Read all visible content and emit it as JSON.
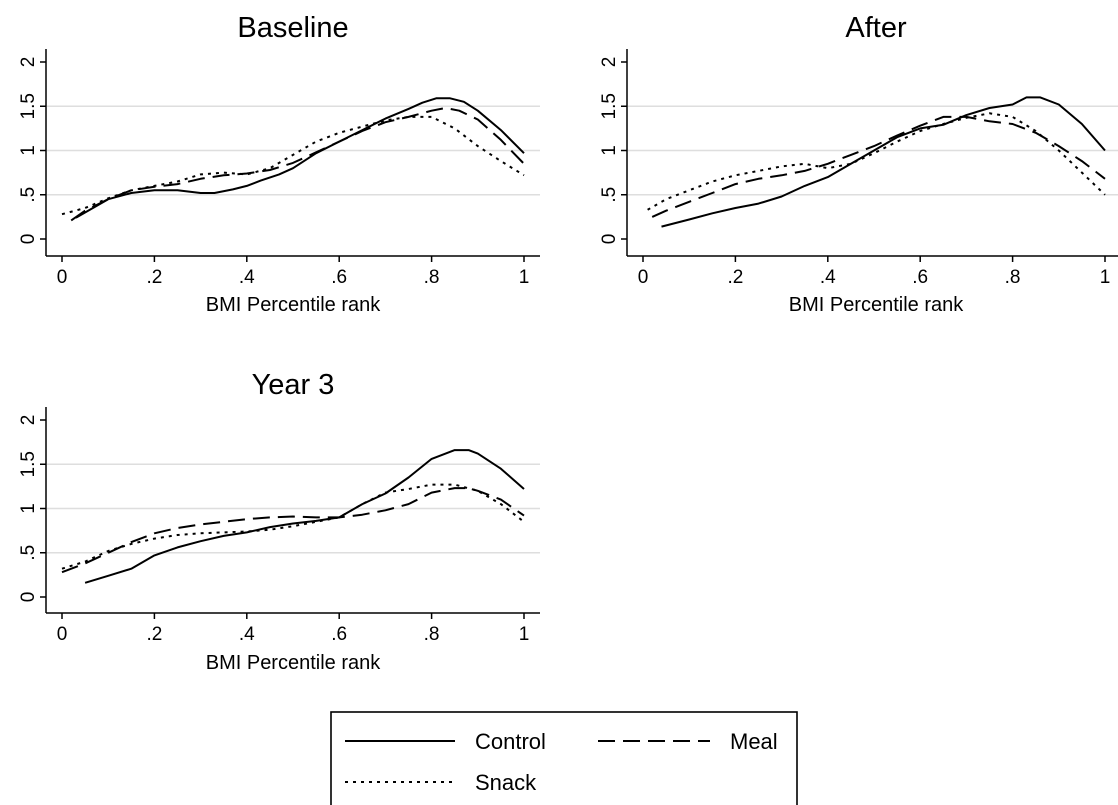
{
  "figure": {
    "legend": {
      "entries": [
        {
          "label": "Control",
          "style": "solid"
        },
        {
          "label": "Meal",
          "style": "dashed"
        },
        {
          "label": "Snack",
          "style": "dotted"
        }
      ],
      "placement": "bottom-center"
    }
  },
  "chart_data": [
    {
      "type": "line",
      "title": "Baseline",
      "xlabel": "BMI Percentile rank",
      "ylabel": "",
      "xlim": [
        0,
        1
      ],
      "ylim": [
        0,
        2
      ],
      "xticks": [
        {
          "v": 0,
          "label": "0"
        },
        {
          "v": 0.2,
          "label": ".2"
        },
        {
          "v": 0.4,
          "label": ".4"
        },
        {
          "v": 0.6,
          "label": ".6"
        },
        {
          "v": 0.8,
          "label": ".8"
        },
        {
          "v": 1,
          "label": "1"
        }
      ],
      "yticks": [
        {
          "v": 0,
          "label": "0"
        },
        {
          "v": 0.5,
          "label": ".5"
        },
        {
          "v": 1,
          "label": "1"
        },
        {
          "v": 1.5,
          "label": "1.5"
        },
        {
          "v": 2,
          "label": "2"
        }
      ],
      "grid": "horizontal",
      "series": [
        {
          "name": "Control",
          "style": "solid",
          "x": [
            0.03,
            0.1,
            0.15,
            0.2,
            0.25,
            0.3,
            0.33,
            0.37,
            0.4,
            0.43,
            0.47,
            0.5,
            0.55,
            0.6,
            0.65,
            0.7,
            0.75,
            0.78,
            0.81,
            0.84,
            0.87,
            0.9,
            0.95,
            1.0
          ],
          "y": [
            0.24,
            0.45,
            0.52,
            0.55,
            0.55,
            0.52,
            0.52,
            0.56,
            0.6,
            0.66,
            0.73,
            0.8,
            0.97,
            1.1,
            1.23,
            1.36,
            1.47,
            1.54,
            1.59,
            1.59,
            1.55,
            1.45,
            1.23,
            0.97
          ]
        },
        {
          "name": "Meal",
          "style": "dashed",
          "x": [
            0.02,
            0.05,
            0.1,
            0.15,
            0.2,
            0.25,
            0.3,
            0.35,
            0.4,
            0.45,
            0.5,
            0.55,
            0.6,
            0.65,
            0.7,
            0.75,
            0.8,
            0.83,
            0.86,
            0.9,
            0.95,
            1.0
          ],
          "y": [
            0.21,
            0.32,
            0.45,
            0.55,
            0.59,
            0.62,
            0.68,
            0.72,
            0.74,
            0.78,
            0.86,
            0.98,
            1.1,
            1.22,
            1.32,
            1.38,
            1.45,
            1.48,
            1.45,
            1.35,
            1.12,
            0.85
          ]
        },
        {
          "name": "Snack",
          "style": "dotted",
          "x": [
            0.0,
            0.05,
            0.1,
            0.15,
            0.2,
            0.25,
            0.3,
            0.35,
            0.4,
            0.45,
            0.5,
            0.55,
            0.6,
            0.65,
            0.7,
            0.75,
            0.8,
            0.85,
            0.9,
            0.95,
            1.0
          ],
          "y": [
            0.28,
            0.35,
            0.46,
            0.55,
            0.6,
            0.65,
            0.73,
            0.75,
            0.73,
            0.8,
            0.95,
            1.1,
            1.2,
            1.27,
            1.34,
            1.38,
            1.38,
            1.25,
            1.05,
            0.88,
            0.72
          ]
        }
      ]
    },
    {
      "type": "line",
      "title": "After",
      "xlabel": "BMI Percentile rank",
      "ylabel": "",
      "xlim": [
        0,
        1
      ],
      "ylim": [
        0,
        2
      ],
      "xticks": [
        {
          "v": 0,
          "label": "0"
        },
        {
          "v": 0.2,
          "label": ".2"
        },
        {
          "v": 0.4,
          "label": ".4"
        },
        {
          "v": 0.6,
          "label": ".6"
        },
        {
          "v": 0.8,
          "label": ".8"
        },
        {
          "v": 1,
          "label": "1"
        }
      ],
      "yticks": [
        {
          "v": 0,
          "label": "0"
        },
        {
          "v": 0.5,
          "label": ".5"
        },
        {
          "v": 1,
          "label": "1"
        },
        {
          "v": 1.5,
          "label": "1.5"
        },
        {
          "v": 2,
          "label": "2"
        }
      ],
      "grid": "horizontal",
      "series": [
        {
          "name": "Control",
          "style": "solid",
          "x": [
            0.04,
            0.1,
            0.15,
            0.2,
            0.25,
            0.3,
            0.35,
            0.4,
            0.45,
            0.5,
            0.55,
            0.6,
            0.65,
            0.7,
            0.75,
            0.8,
            0.83,
            0.86,
            0.9,
            0.95,
            1.0
          ],
          "y": [
            0.14,
            0.22,
            0.29,
            0.35,
            0.4,
            0.48,
            0.6,
            0.7,
            0.85,
            1.0,
            1.15,
            1.25,
            1.29,
            1.4,
            1.48,
            1.52,
            1.6,
            1.6,
            1.52,
            1.3,
            1.0
          ]
        },
        {
          "name": "Meal",
          "style": "dashed",
          "x": [
            0.02,
            0.05,
            0.1,
            0.15,
            0.2,
            0.25,
            0.3,
            0.35,
            0.4,
            0.45,
            0.5,
            0.55,
            0.6,
            0.65,
            0.7,
            0.75,
            0.8,
            0.85,
            0.9,
            0.95,
            1.0
          ],
          "y": [
            0.25,
            0.32,
            0.42,
            0.52,
            0.62,
            0.68,
            0.72,
            0.77,
            0.85,
            0.95,
            1.05,
            1.17,
            1.28,
            1.38,
            1.38,
            1.33,
            1.3,
            1.2,
            1.05,
            0.88,
            0.68
          ]
        },
        {
          "name": "Snack",
          "style": "dotted",
          "x": [
            0.01,
            0.05,
            0.1,
            0.15,
            0.2,
            0.25,
            0.3,
            0.35,
            0.4,
            0.45,
            0.5,
            0.55,
            0.6,
            0.65,
            0.7,
            0.75,
            0.8,
            0.85,
            0.9,
            0.95,
            1.0
          ],
          "y": [
            0.33,
            0.45,
            0.55,
            0.65,
            0.72,
            0.77,
            0.82,
            0.85,
            0.8,
            0.85,
            0.97,
            1.1,
            1.22,
            1.3,
            1.37,
            1.42,
            1.38,
            1.22,
            1.0,
            0.75,
            0.5
          ]
        }
      ]
    },
    {
      "type": "line",
      "title": "Year 3",
      "xlabel": "BMI Percentile rank",
      "ylabel": "",
      "xlim": [
        0,
        1
      ],
      "ylim": [
        0,
        2
      ],
      "xticks": [
        {
          "v": 0,
          "label": "0"
        },
        {
          "v": 0.2,
          "label": ".2"
        },
        {
          "v": 0.4,
          "label": ".4"
        },
        {
          "v": 0.6,
          "label": ".6"
        },
        {
          "v": 0.8,
          "label": ".8"
        },
        {
          "v": 1,
          "label": "1"
        }
      ],
      "yticks": [
        {
          "v": 0,
          "label": "0"
        },
        {
          "v": 0.5,
          "label": ".5"
        },
        {
          "v": 1,
          "label": "1"
        },
        {
          "v": 1.5,
          "label": "1.5"
        },
        {
          "v": 2,
          "label": "2"
        }
      ],
      "grid": "horizontal",
      "series": [
        {
          "name": "Control",
          "style": "solid",
          "x": [
            0.05,
            0.1,
            0.15,
            0.2,
            0.25,
            0.3,
            0.35,
            0.4,
            0.45,
            0.5,
            0.55,
            0.6,
            0.65,
            0.7,
            0.75,
            0.8,
            0.85,
            0.88,
            0.9,
            0.95,
            1.0
          ],
          "y": [
            0.16,
            0.24,
            0.32,
            0.47,
            0.56,
            0.63,
            0.69,
            0.73,
            0.79,
            0.83,
            0.86,
            0.9,
            1.05,
            1.17,
            1.35,
            1.56,
            1.66,
            1.66,
            1.62,
            1.45,
            1.22
          ]
        },
        {
          "name": "Meal",
          "style": "dashed",
          "x": [
            0.0,
            0.05,
            0.1,
            0.15,
            0.2,
            0.25,
            0.3,
            0.35,
            0.4,
            0.45,
            0.5,
            0.55,
            0.6,
            0.65,
            0.7,
            0.75,
            0.8,
            0.85,
            0.88,
            0.9,
            0.95,
            1.0
          ],
          "y": [
            0.28,
            0.38,
            0.5,
            0.62,
            0.72,
            0.78,
            0.82,
            0.85,
            0.88,
            0.9,
            0.91,
            0.9,
            0.9,
            0.93,
            0.98,
            1.05,
            1.18,
            1.23,
            1.23,
            1.2,
            1.1,
            0.92
          ]
        },
        {
          "name": "Snack",
          "style": "dotted",
          "x": [
            0.0,
            0.05,
            0.1,
            0.15,
            0.2,
            0.25,
            0.3,
            0.35,
            0.4,
            0.45,
            0.5,
            0.55,
            0.6,
            0.65,
            0.7,
            0.75,
            0.8,
            0.85,
            0.9,
            0.95,
            1.0
          ],
          "y": [
            0.32,
            0.4,
            0.52,
            0.6,
            0.66,
            0.7,
            0.72,
            0.73,
            0.74,
            0.76,
            0.8,
            0.85,
            0.9,
            1.05,
            1.18,
            1.22,
            1.27,
            1.27,
            1.2,
            1.05,
            0.85
          ]
        }
      ]
    }
  ]
}
